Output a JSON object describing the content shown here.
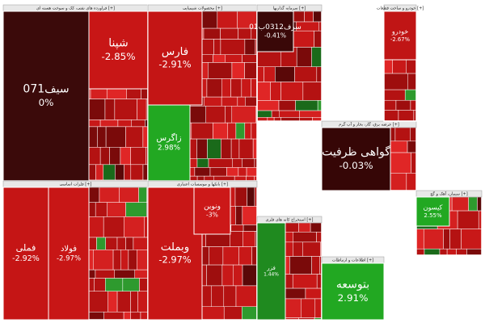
{
  "chart_data": {
    "type": "treemap",
    "sectors": [
      {
        "name": "فراورده های نفتی، کک و سوخت هسته ای [+]",
        "tiles": [
          "سیف071",
          "شپنا"
        ],
        "values": [
          0,
          -2.85
        ],
        "value_labels": [
          "0%",
          "-2.85%"
        ],
        "colors": [
          "#3b0a0a",
          "#c81616"
        ]
      },
      {
        "name": "محصولات شیمیایی [+]",
        "tiles": [
          "فارس",
          "زاگرس"
        ],
        "values": [
          -2.91,
          2.98
        ],
        "value_labels": [
          "-2.91%",
          "2.98%"
        ],
        "colors": [
          "#c41515",
          "#22a822"
        ]
      },
      {
        "name": "سرمایه گذاریها [+]",
        "tiles": [
          "سرف0312ب01"
        ],
        "values": [
          -0.41
        ],
        "value_labels": [
          "-0.41%"
        ],
        "colors": [
          "#3a0808"
        ]
      },
      {
        "name": "فلزات اساسی [+]",
        "tiles": [
          "فملی",
          "فولاد"
        ],
        "values": [
          -2.92,
          -2.97
        ],
        "value_labels": [
          "-2.92%",
          "-2.97%"
        ],
        "colors": [
          "#c51515",
          "#c81616"
        ]
      },
      {
        "name": "بانکها و موسسات اعتباری [+]",
        "tiles": [
          "وبملت",
          "ونوین"
        ],
        "values": [
          -2.97,
          -3
        ],
        "value_labels": [
          "-2.97%",
          "-3%"
        ],
        "colors": [
          "#c81616",
          "#cc1818"
        ]
      },
      {
        "name": "عرضه برق، گاز، بخار و آب گرم [+]",
        "tiles": [
          "گواهی ظرفیت"
        ],
        "values": [
          -0.03
        ],
        "value_labels": [
          "-0.03%"
        ],
        "colors": [
          "#360606"
        ]
      },
      {
        "name": "استخراج کانه های فلزی [+]",
        "tiles": [
          "فزر"
        ],
        "values": [
          1.44
        ],
        "value_labels": [
          "1.44%"
        ],
        "colors": [
          "#1f8a1f"
        ]
      },
      {
        "name": "اطلاعات و ارتباطات [+]",
        "tiles": [
          "بتوسعه"
        ],
        "values": [
          2.91
        ],
        "value_labels": [
          "2.91%"
        ],
        "colors": [
          "#22a822"
        ]
      },
      {
        "name": "خودرو و ساخت قطعات [+]",
        "tiles": [
          "خودرو"
        ],
        "values": [
          -2.67
        ],
        "value_labels": [
          "-2.67%"
        ],
        "colors": [
          "#c01515"
        ]
      },
      {
        "name": "سیمان، آهک و گچ [+]",
        "tiles": [
          "کیسون"
        ],
        "values": [
          2.55
        ],
        "value_labels": [
          "2.55%"
        ],
        "colors": [
          "#22a822"
        ]
      }
    ]
  }
}
